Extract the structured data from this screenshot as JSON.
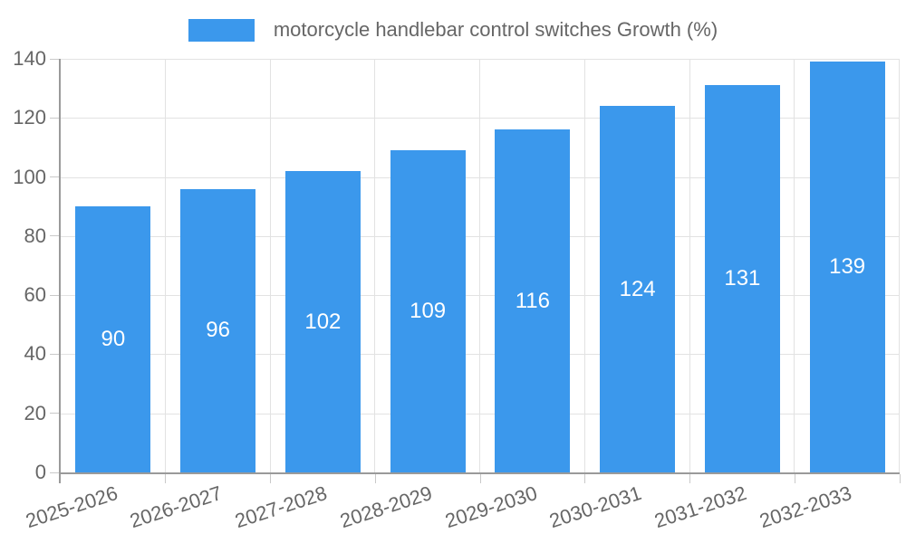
{
  "chart_data": {
    "type": "bar",
    "title": "",
    "legend": "motorcycle handlebar control switches Growth (%)",
    "legend_position": "top",
    "categories": [
      "2025-2026",
      "2026-2027",
      "2027-2028",
      "2028-2029",
      "2029-2030",
      "2030-2031",
      "2031-2032",
      "2032-2033"
    ],
    "values": [
      90,
      96,
      102,
      109,
      116,
      124,
      131,
      139
    ],
    "xlabel": "",
    "ylabel": "",
    "ylim": [
      0,
      140
    ],
    "yticks": [
      0,
      20,
      40,
      60,
      80,
      100,
      120,
      140
    ],
    "grid": true,
    "bar_value_labels_shown": true,
    "x_label_rotation_deg": -18
  },
  "colors": {
    "bar": "#3B98EC",
    "bar_value_text": "#FFFFFF",
    "axis_text": "#666666",
    "axis_line": "#9A9A9A",
    "grid_line": "#E2E2E2",
    "tick_line": "#C9C9C9",
    "background": "#FFFFFF"
  }
}
